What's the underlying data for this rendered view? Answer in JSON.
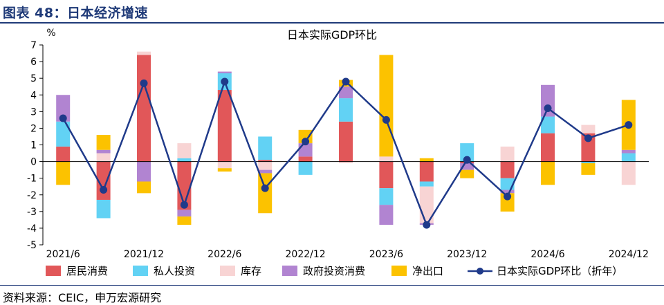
{
  "figure_title": "图表 48：日本经济增速",
  "source": "资料来源：CEIC，申万宏源研究",
  "colors": {
    "title_blue": "#1f3a78",
    "resident": "#e15759",
    "private_invest": "#62d2f4",
    "inventory": "#f8d4d4",
    "govt": "#b184d1",
    "net_export": "#fcc200",
    "line": "#1f3a8a",
    "axis": "#000000"
  },
  "chart_data": {
    "type": "bar",
    "stacked": true,
    "title": "日本实际GDP环比",
    "ylabel": "%",
    "ylim": [
      -5,
      7
    ],
    "yticks": [
      -5,
      -4,
      -3,
      -2,
      -1,
      0,
      1,
      2,
      3,
      4,
      5,
      6,
      7
    ],
    "categories": [
      "2021/6",
      "2021/9",
      "2021/12",
      "2022/3",
      "2022/6",
      "2022/9",
      "2022/12",
      "2023/3",
      "2023/6",
      "2023/9",
      "2023/12",
      "2024/3",
      "2024/6",
      "2024/9",
      "2024/12"
    ],
    "xtick_labels": [
      "2021/6",
      "",
      "2021/12",
      "",
      "2022/6",
      "",
      "2022/12",
      "",
      "2023/6",
      "",
      "2023/12",
      "",
      "2024/6",
      "",
      "2024/12"
    ],
    "series": [
      {
        "name": "居民消费",
        "key": "resident",
        "values": [
          0.9,
          -2.3,
          6.4,
          -2.9,
          4.3,
          0.1,
          0.3,
          2.4,
          -1.6,
          -1.2,
          -0.1,
          -1.0,
          1.7,
          1.7,
          0.0
        ]
      },
      {
        "name": "私人投资",
        "key": "private_invest",
        "values": [
          1.5,
          -1.1,
          0.0,
          0.2,
          1.0,
          1.4,
          -0.8,
          1.4,
          -1.0,
          -0.3,
          1.1,
          -0.7,
          1.0,
          -0.1,
          0.5
        ]
      },
      {
        "name": "库存",
        "key": "inventory",
        "values": [
          0.0,
          0.5,
          0.2,
          0.9,
          -0.4,
          -0.5,
          0.0,
          -0.1,
          0.3,
          -2.2,
          0.0,
          0.9,
          0.0,
          0.5,
          -1.4
        ]
      },
      {
        "name": "政府投资消费",
        "key": "govt",
        "values": [
          1.6,
          0.2,
          -1.2,
          -0.4,
          0.1,
          -0.2,
          0.8,
          0.7,
          -1.2,
          -0.1,
          -0.4,
          -0.2,
          1.9,
          0.0,
          0.2
        ]
      },
      {
        "name": "净出口",
        "key": "net_export",
        "values": [
          -1.4,
          0.9,
          -0.7,
          -0.5,
          -0.2,
          -2.4,
          0.8,
          0.4,
          6.1,
          0.2,
          -0.5,
          -1.1,
          -1.4,
          -0.7,
          3.0
        ]
      }
    ],
    "line": {
      "name": "日本实际GDP环比（折年）",
      "values": [
        2.6,
        -1.7,
        4.7,
        -2.6,
        4.8,
        -1.6,
        1.2,
        4.8,
        2.5,
        -3.8,
        0.1,
        -2.1,
        3.2,
        1.4,
        2.2
      ]
    }
  }
}
